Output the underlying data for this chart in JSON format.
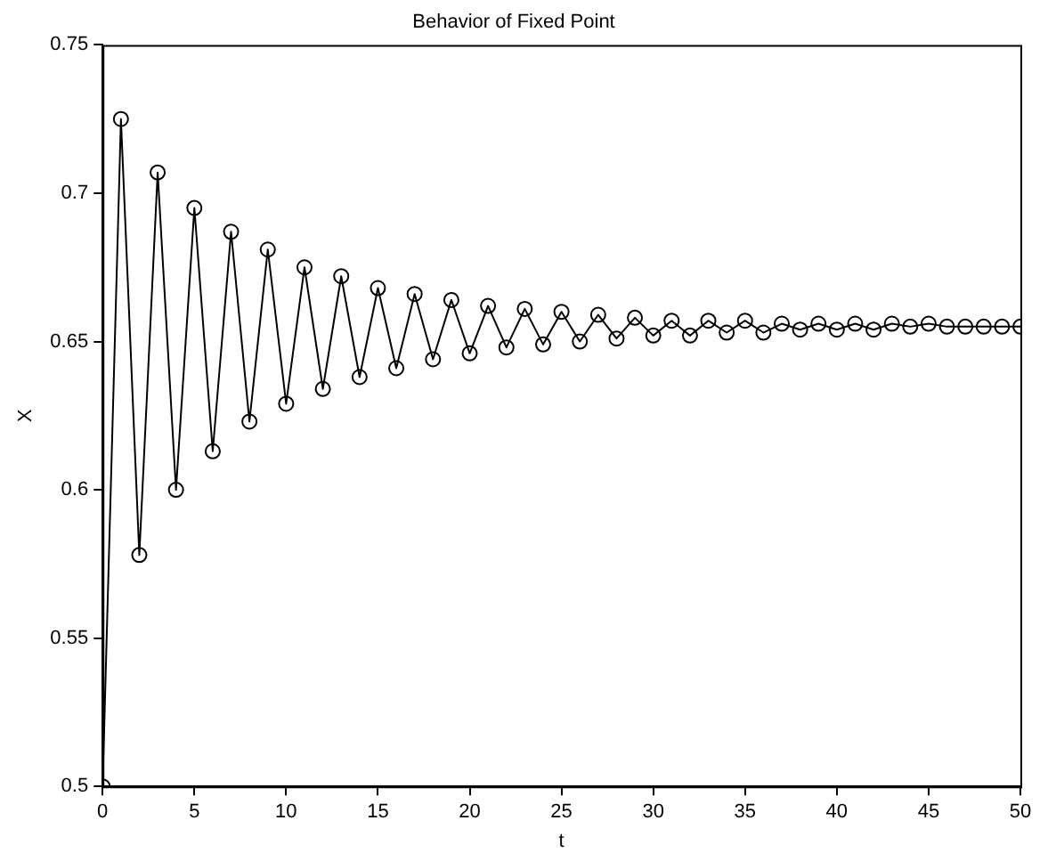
{
  "chart_data": {
    "type": "line",
    "title": "Behavior of Fixed Point",
    "xlabel": "t",
    "ylabel": "X",
    "x": [
      0,
      1,
      2,
      3,
      4,
      5,
      6,
      7,
      8,
      9,
      10,
      11,
      12,
      13,
      14,
      15,
      16,
      17,
      18,
      19,
      20,
      21,
      22,
      23,
      24,
      25,
      26,
      27,
      28,
      29,
      30,
      31,
      32,
      33,
      34,
      35,
      36,
      37,
      38,
      39,
      40,
      41,
      42,
      43,
      44,
      45,
      46,
      47,
      48,
      49,
      50
    ],
    "series": [
      {
        "color": "#000000",
        "values": [
          0.5,
          0.725,
          0.578,
          0.707,
          0.6,
          0.695,
          0.613,
          0.687,
          0.623,
          0.681,
          0.629,
          0.675,
          0.634,
          0.672,
          0.638,
          0.668,
          0.641,
          0.666,
          0.644,
          0.664,
          0.646,
          0.662,
          0.648,
          0.661,
          0.649,
          0.66,
          0.65,
          0.659,
          0.651,
          0.658,
          0.652,
          0.657,
          0.652,
          0.657,
          0.653,
          0.657,
          0.653,
          0.656,
          0.654,
          0.656,
          0.654,
          0.656,
          0.654,
          0.656,
          0.655,
          0.656,
          0.655,
          0.655,
          0.655,
          0.655,
          0.655
        ]
      }
    ],
    "xlim": [
      0,
      50
    ],
    "xticks": [
      0,
      5,
      10,
      15,
      20,
      25,
      30,
      35,
      40,
      45,
      50
    ],
    "ylim": [
      0.5,
      0.75
    ],
    "yticks": [
      0.5,
      0.55,
      0.6,
      0.65,
      0.7,
      0.75
    ],
    "grid": false,
    "legend": false,
    "marker": "circle",
    "line_style": "solid"
  }
}
